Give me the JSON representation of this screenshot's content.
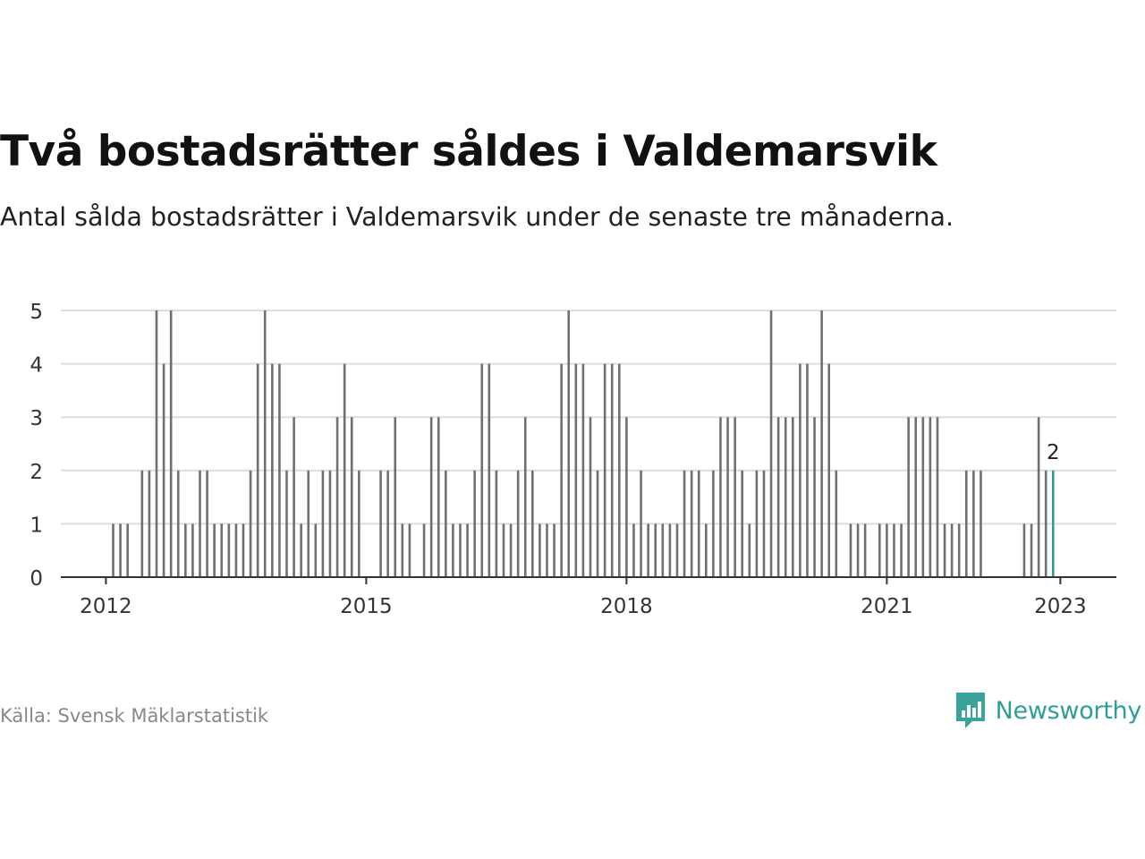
{
  "header": {
    "title": "Två bostadsrätter såldes i Valdemarsvik",
    "subtitle": "Antal sålda bostadsrätter i Valdemarsvik under de senaste tre månaderna."
  },
  "footer": {
    "source": "Källa: Svensk Mäklarstatistik",
    "brand": "Newsworthy",
    "brand_icon": "bar-chart-speech-bubble-icon"
  },
  "colors": {
    "bar": "#707070",
    "highlight": "#2a9d8f",
    "grid": "#dddddd",
    "axis": "#333333",
    "brand": "#2f9e98"
  },
  "chart_data": {
    "type": "bar",
    "title": "Två bostadsrätter såldes i Valdemarsvik",
    "subtitle": "Antal sålda bostadsrätter i Valdemarsvik under de senaste tre månaderna.",
    "xlabel": "",
    "ylabel": "",
    "x_start": "2011-07",
    "x_step": "1 month",
    "ylim": [
      0,
      5
    ],
    "yticks": [
      0,
      1,
      2,
      3,
      4,
      5
    ],
    "xtick_labels": [
      "2012",
      "2015",
      "2018",
      "2021",
      "2023"
    ],
    "xtick_positions": [
      6,
      42,
      78,
      114,
      138
    ],
    "grid": true,
    "legend": "none",
    "highlight_label": "2",
    "values": [
      0,
      0,
      0,
      0,
      0,
      0,
      0,
      1,
      1,
      1,
      0,
      2,
      2,
      5,
      4,
      5,
      2,
      1,
      1,
      2,
      2,
      1,
      1,
      1,
      1,
      1,
      2,
      4,
      5,
      4,
      4,
      2,
      3,
      1,
      2,
      1,
      2,
      2,
      3,
      4,
      3,
      2,
      0,
      0,
      2,
      2,
      3,
      1,
      1,
      0,
      1,
      3,
      3,
      2,
      1,
      1,
      1,
      2,
      4,
      4,
      2,
      1,
      1,
      2,
      3,
      2,
      1,
      1,
      1,
      4,
      5,
      4,
      4,
      3,
      2,
      4,
      4,
      4,
      3,
      1,
      2,
      1,
      1,
      1,
      1,
      1,
      2,
      2,
      2,
      1,
      2,
      3,
      3,
      3,
      2,
      1,
      2,
      2,
      5,
      3,
      3,
      3,
      4,
      4,
      3,
      5,
      4,
      2,
      0,
      1,
      1,
      1,
      0,
      1,
      1,
      1,
      1,
      3,
      3,
      3,
      3,
      3,
      1,
      1,
      1,
      2,
      2,
      2,
      0,
      0,
      0,
      0,
      0,
      1,
      1,
      3,
      2,
      2
    ]
  }
}
